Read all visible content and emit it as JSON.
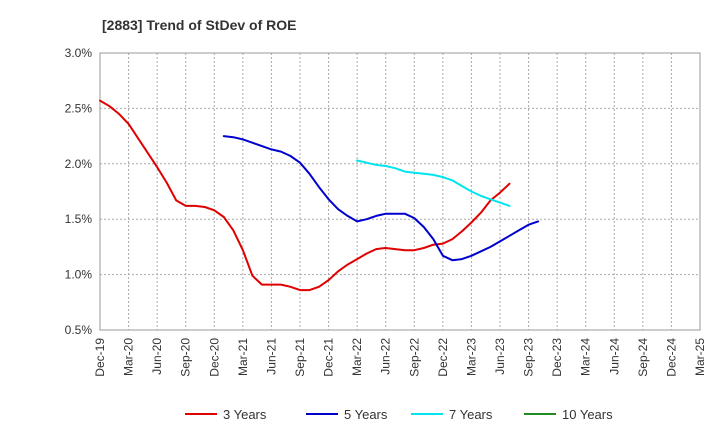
{
  "chart_data": {
    "type": "line",
    "title": "[2883]  Trend of StDev of ROE",
    "xlabel": "",
    "ylabel": "",
    "ylim": [
      0.5,
      3.0
    ],
    "y_ticks": [
      0.5,
      1.0,
      1.5,
      2.0,
      2.5,
      3.0
    ],
    "y_tick_labels": [
      "0.5%",
      "1.0%",
      "1.5%",
      "2.0%",
      "2.5%",
      "3.0%"
    ],
    "x_tick_labels": [
      "Dec-19",
      "Mar-20",
      "Jun-20",
      "Sep-20",
      "Dec-20",
      "Mar-21",
      "Jun-21",
      "Sep-21",
      "Dec-21",
      "Mar-22",
      "Jun-22",
      "Sep-22",
      "Dec-22",
      "Mar-23",
      "Jun-23",
      "Sep-23",
      "Dec-23",
      "Mar-24",
      "Jun-24",
      "Sep-24",
      "Dec-24",
      "Mar-25"
    ],
    "grid": true,
    "legend_position": "bottom",
    "series": [
      {
        "name": "3 Years",
        "color": "#e00000",
        "values": [
          [
            0,
            2.57
          ],
          [
            1,
            2.52
          ],
          [
            2,
            2.45
          ],
          [
            3,
            2.36
          ],
          [
            4,
            2.23
          ],
          [
            5,
            2.1
          ],
          [
            6,
            1.97
          ],
          [
            7,
            1.83
          ],
          [
            8,
            1.67
          ],
          [
            9,
            1.62
          ],
          [
            10,
            1.62
          ],
          [
            11,
            1.61
          ],
          [
            12,
            1.58
          ],
          [
            13,
            1.52
          ],
          [
            14,
            1.4
          ],
          [
            15,
            1.22
          ],
          [
            16,
            0.99
          ],
          [
            17,
            0.91
          ],
          [
            18,
            0.91
          ],
          [
            19,
            0.91
          ],
          [
            20,
            0.89
          ],
          [
            21,
            0.86
          ],
          [
            22,
            0.86
          ],
          [
            23,
            0.89
          ],
          [
            24,
            0.95
          ],
          [
            25,
            1.03
          ],
          [
            26,
            1.09
          ],
          [
            27,
            1.14
          ],
          [
            28,
            1.19
          ],
          [
            29,
            1.23
          ],
          [
            30,
            1.24
          ],
          [
            31,
            1.23
          ],
          [
            32,
            1.22
          ],
          [
            33,
            1.22
          ],
          [
            34,
            1.24
          ],
          [
            35,
            1.27
          ],
          [
            36,
            1.28
          ],
          [
            37,
            1.32
          ],
          [
            38,
            1.39
          ],
          [
            39,
            1.47
          ],
          [
            40,
            1.56
          ],
          [
            41,
            1.67
          ],
          [
            42,
            1.74
          ],
          [
            43,
            1.82
          ]
        ]
      },
      {
        "name": "5 Years",
        "color": "#0000cc",
        "values": [
          [
            13,
            2.25
          ],
          [
            14,
            2.24
          ],
          [
            15,
            2.22
          ],
          [
            16,
            2.19
          ],
          [
            17,
            2.16
          ],
          [
            18,
            2.13
          ],
          [
            19,
            2.11
          ],
          [
            20,
            2.07
          ],
          [
            21,
            2.01
          ],
          [
            22,
            1.91
          ],
          [
            23,
            1.79
          ],
          [
            24,
            1.68
          ],
          [
            25,
            1.59
          ],
          [
            26,
            1.53
          ],
          [
            27,
            1.48
          ],
          [
            28,
            1.5
          ],
          [
            29,
            1.53
          ],
          [
            30,
            1.55
          ],
          [
            31,
            1.55
          ],
          [
            32,
            1.55
          ],
          [
            33,
            1.51
          ],
          [
            34,
            1.43
          ],
          [
            35,
            1.32
          ],
          [
            36,
            1.17
          ],
          [
            37,
            1.13
          ],
          [
            38,
            1.14
          ],
          [
            39,
            1.17
          ],
          [
            40,
            1.21
          ],
          [
            41,
            1.25
          ],
          [
            42,
            1.3
          ],
          [
            43,
            1.35
          ],
          [
            44,
            1.4
          ],
          [
            45,
            1.45
          ],
          [
            46,
            1.48
          ]
        ]
      },
      {
        "name": "7 Years",
        "color": "#00e5ee",
        "values": [
          [
            27,
            2.03
          ],
          [
            28,
            2.01
          ],
          [
            29,
            1.99
          ],
          [
            30,
            1.98
          ],
          [
            31,
            1.96
          ],
          [
            32,
            1.93
          ],
          [
            33,
            1.92
          ],
          [
            34,
            1.91
          ],
          [
            35,
            1.9
          ],
          [
            36,
            1.88
          ],
          [
            37,
            1.85
          ],
          [
            38,
            1.8
          ],
          [
            39,
            1.75
          ],
          [
            40,
            1.71
          ],
          [
            41,
            1.68
          ],
          [
            42,
            1.65
          ],
          [
            43,
            1.62
          ]
        ]
      },
      {
        "name": "10 Years",
        "color": "#228b22",
        "values": []
      }
    ]
  }
}
